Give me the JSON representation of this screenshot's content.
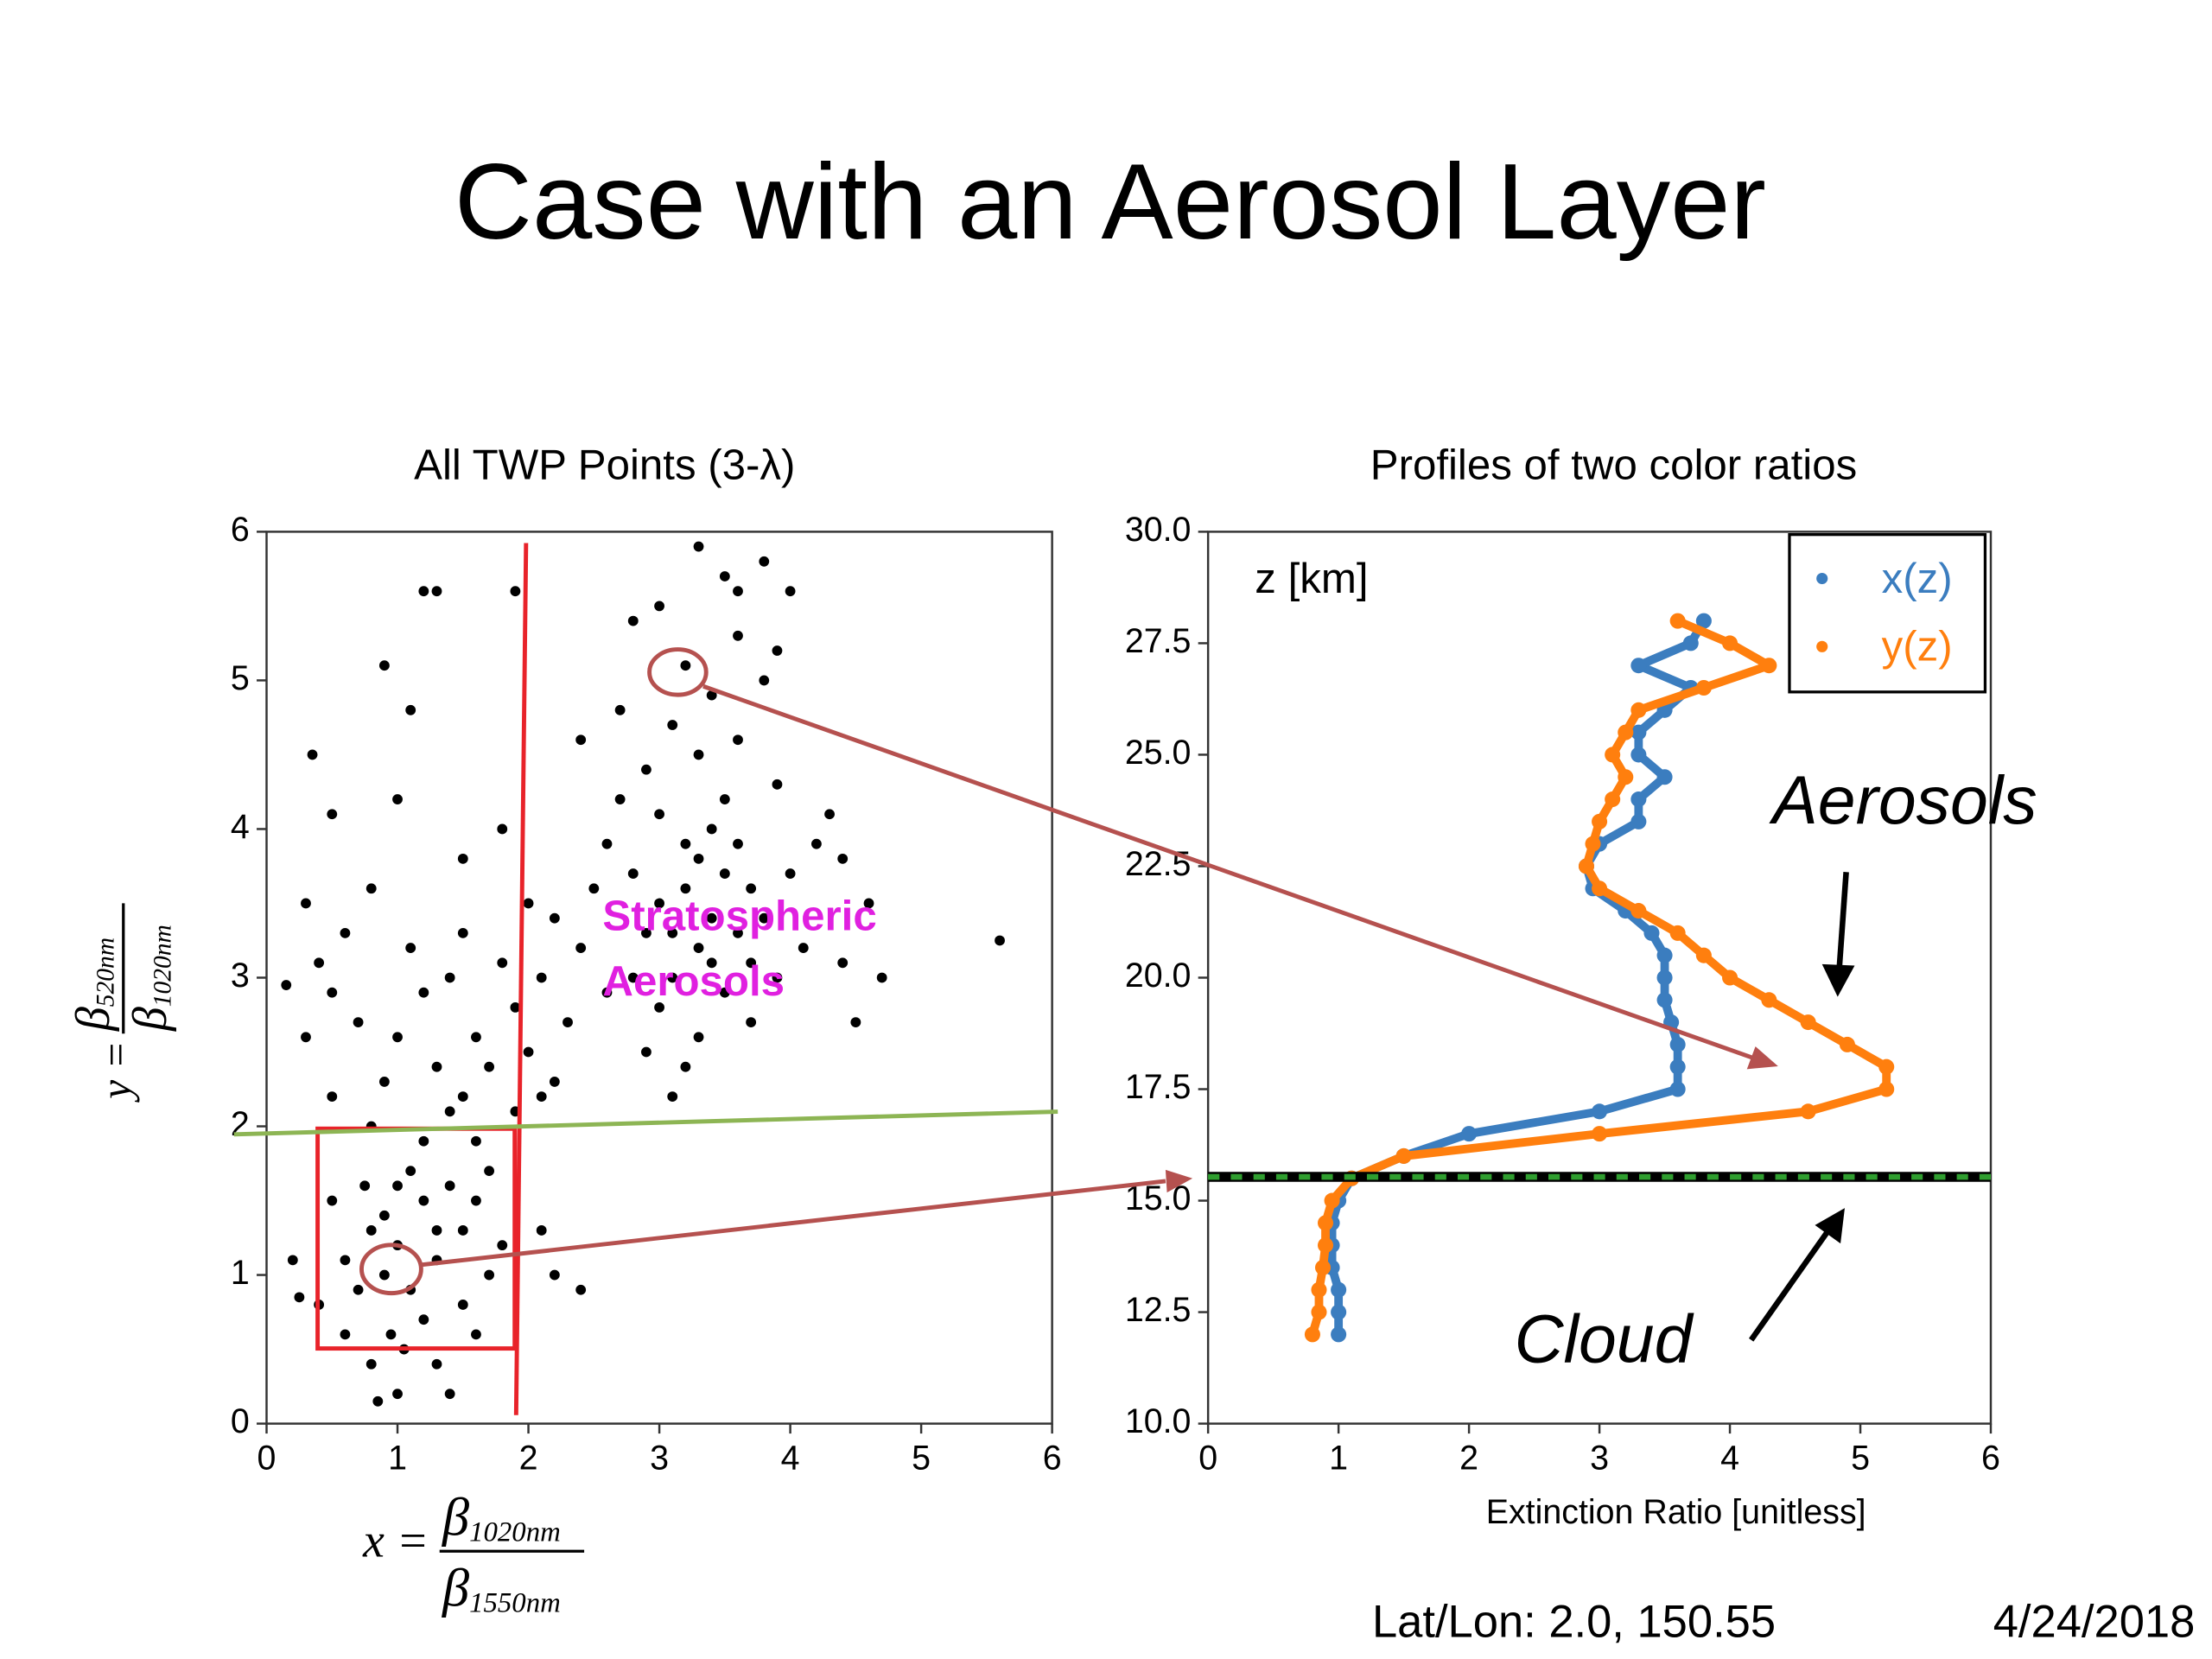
{
  "title": "Case with an Aerosol Layer",
  "footer": {
    "location": "Lat/Lon: 2.0, 150.55",
    "date": "4/24/2018"
  },
  "chart_data": [
    {
      "type": "scatter",
      "title": "All TWP Points (3-λ)",
      "x_label": {
        "lhs": "x =",
        "numerator": "β",
        "numerator_sub": "1020nm",
        "denominator": "β",
        "denominator_sub": "1550nm"
      },
      "y_label": {
        "lhs": "y =",
        "numerator": "β",
        "numerator_sub": "520nm",
        "denominator": "β",
        "denominator_sub": "1020nm"
      },
      "annotation_lines": [
        "Stratospheric",
        "Aerosols"
      ],
      "color": "#000000",
      "xlim": [
        0,
        6
      ],
      "ylim": [
        0,
        6
      ],
      "xticks": [
        0,
        1,
        2,
        3,
        4,
        5,
        6
      ],
      "yticks": [
        0,
        1,
        2,
        3,
        4,
        5,
        6
      ],
      "x": [
        3.0,
        3.2,
        3.4,
        3.5,
        3.3,
        3.6,
        3.1,
        2.9,
        3.7,
        3.8,
        3.2,
        3.4,
        3.0,
        3.5,
        3.3,
        3.1,
        3.4,
        3.2,
        3.6,
        3.0,
        3.5,
        3.8,
        3.3,
        2.8,
        3.9,
        2.7,
        2.9,
        2.6,
        2.5,
        2.8,
        3.0,
        3.3,
        3.5,
        3.9,
        4.0,
        4.1,
        3.7,
        2.6,
        2.4,
        3.2,
        4.2,
        3.9,
        3.6,
        2.7,
        4.6,
        4.7,
        5.6,
        4.4,
        3.1,
        2.9,
        3.4,
        3.6,
        3.3,
        3.1,
        2.8,
        3.7,
        4.4,
        4.5,
        4.3,
        3.8,
        3.6,
        4.0,
        2.4,
        2.2,
        2.1,
        2.0,
        1.9,
        1.8,
        2.1,
        1.7,
        1.6,
        1.5,
        1.4,
        1.5,
        1.6,
        1.4,
        1.3,
        1.9,
        2.2,
        2.3,
        2.0,
        1.8,
        1.5,
        1.2,
        1.1,
        0.8,
        0.6,
        0.7,
        0.5,
        0.3,
        0.4,
        0.9,
        1.0,
        0.5,
        1.0,
        0.5,
        0.35,
        1.1,
        1.2,
        1.3,
        0.9,
        1.9,
        0.15,
        0.3,
        0.8,
        1.0,
        0.9,
        1.1,
        0.8,
        1.2,
        1.0,
        0.7,
        1.3,
        1.1,
        0.9,
        1.4,
        1.5,
        0.6,
        1.2,
        0.95,
        1.05,
        0.8,
        1.3,
        1.4,
        0.85,
        1.0,
        1.5,
        1.7,
        1.6,
        1.8,
        2.2,
        2.4,
        2.1,
        0.5,
        0.4,
        0.6,
        1.2,
        1.6,
        0.2,
        0.25,
        1.7,
        1.3,
        0.75
      ],
      "values": [
        3.5,
        3.6,
        3.4,
        3.7,
        3.2,
        3.3,
        3.0,
        3.3,
        3.6,
        3.4,
        3.9,
        4.0,
        4.1,
        4.2,
        4.5,
        4.7,
        4.9,
        5.1,
        5.3,
        5.5,
        5.7,
        5.8,
        5.9,
        5.4,
        5.2,
        4.8,
        4.4,
        3.9,
        3.6,
        3.0,
        2.8,
        2.6,
        2.9,
        3.0,
        3.7,
        3.2,
        2.7,
        2.9,
        3.2,
        2.4,
        3.9,
        4.3,
        4.6,
        4.2,
        3.5,
        3.0,
        3.25,
        3.1,
        2.2,
        2.5,
        3.1,
        3.9,
        3.8,
        3.3,
        3.7,
        3.1,
        3.8,
        2.7,
        4.1,
        5.0,
        5.6,
        5.6,
        4.6,
        3.4,
        3.0,
        2.5,
        2.8,
        3.1,
        2.2,
        2.4,
        2.6,
        3.3,
        3.0,
        2.2,
        1.9,
        2.1,
        2.4,
        2.1,
        2.3,
        2.7,
        3.5,
        4.0,
        3.8,
        2.9,
        3.2,
        3.6,
        3.3,
        2.7,
        2.9,
        2.6,
        3.1,
        2.3,
        2.6,
        2.2,
        4.2,
        4.1,
        4.5,
        4.8,
        5.6,
        5.6,
        5.1,
        5.6,
        2.95,
        3.5,
        2.0,
        1.2,
        1.0,
        0.9,
        1.3,
        1.5,
        1.6,
        0.9,
        1.1,
        1.7,
        1.4,
        1.6,
        1.3,
        1.1,
        0.7,
        0.6,
        0.5,
        0.4,
        0.4,
        0.2,
        0.15,
        0.2,
        0.8,
        1.0,
        1.5,
        1.2,
        1.0,
        0.9,
        1.3,
        1.5,
        0.8,
        0.6,
        1.9,
        0.6,
        1.1,
        0.85,
        1.7,
        1.3,
        1.6
      ]
    },
    {
      "type": "line",
      "title": "Profiles of two color ratios",
      "x_label": "Extinction Ratio [unitless]",
      "y_label": "z [km]",
      "annotations": [
        "Aerosols",
        "Cloud"
      ],
      "legend": "upper right",
      "xlim": [
        0,
        6
      ],
      "ylim": [
        10,
        30
      ],
      "xticks": [
        0,
        1,
        2,
        3,
        4,
        5,
        6
      ],
      "yticks": [
        {
          "value": 10,
          "label": "10.0"
        },
        12.5,
        {
          "value": 15,
          "label": "15.0"
        },
        17.5,
        {
          "value": 20,
          "label": "20.0"
        },
        22.5,
        {
          "value": 25,
          "label": "25.0"
        },
        27.5,
        {
          "value": 30,
          "label": "30.0"
        }
      ],
      "y": [
        28,
        27.5,
        27,
        26.5,
        26,
        25.5,
        25,
        24.5,
        24,
        23.5,
        23,
        22.5,
        22,
        21.5,
        21,
        20.5,
        20,
        19.5,
        19,
        18.5,
        18,
        17.5,
        17,
        16.5,
        16,
        15.5,
        15,
        14.5,
        14,
        13.5,
        13,
        12.5,
        12
      ],
      "series": [
        {
          "name": "x(z)",
          "color": "#3b7dbf",
          "values": [
            3.8,
            3.7,
            3.3,
            3.7,
            3.5,
            3.3,
            3.3,
            3.5,
            3.3,
            3.3,
            3.0,
            2.9,
            2.95,
            3.2,
            3.4,
            3.5,
            3.5,
            3.5,
            3.55,
            3.6,
            3.6,
            3.6,
            3.0,
            2.0,
            1.5,
            1.1,
            1.0,
            0.95,
            0.95,
            0.95,
            1.0,
            1.0,
            1.0
          ]
        },
        {
          "name": "y(z)",
          "color": "#ff7f0e",
          "values": [
            3.6,
            4.0,
            4.3,
            3.8,
            3.3,
            3.2,
            3.1,
            3.2,
            3.1,
            3.0,
            2.95,
            2.9,
            3.0,
            3.3,
            3.6,
            3.8,
            4.0,
            4.3,
            4.6,
            4.9,
            5.2,
            5.2,
            4.6,
            3.0,
            1.5,
            1.1,
            0.95,
            0.9,
            0.9,
            0.88,
            0.85,
            0.85,
            0.8
          ]
        }
      ]
    }
  ]
}
